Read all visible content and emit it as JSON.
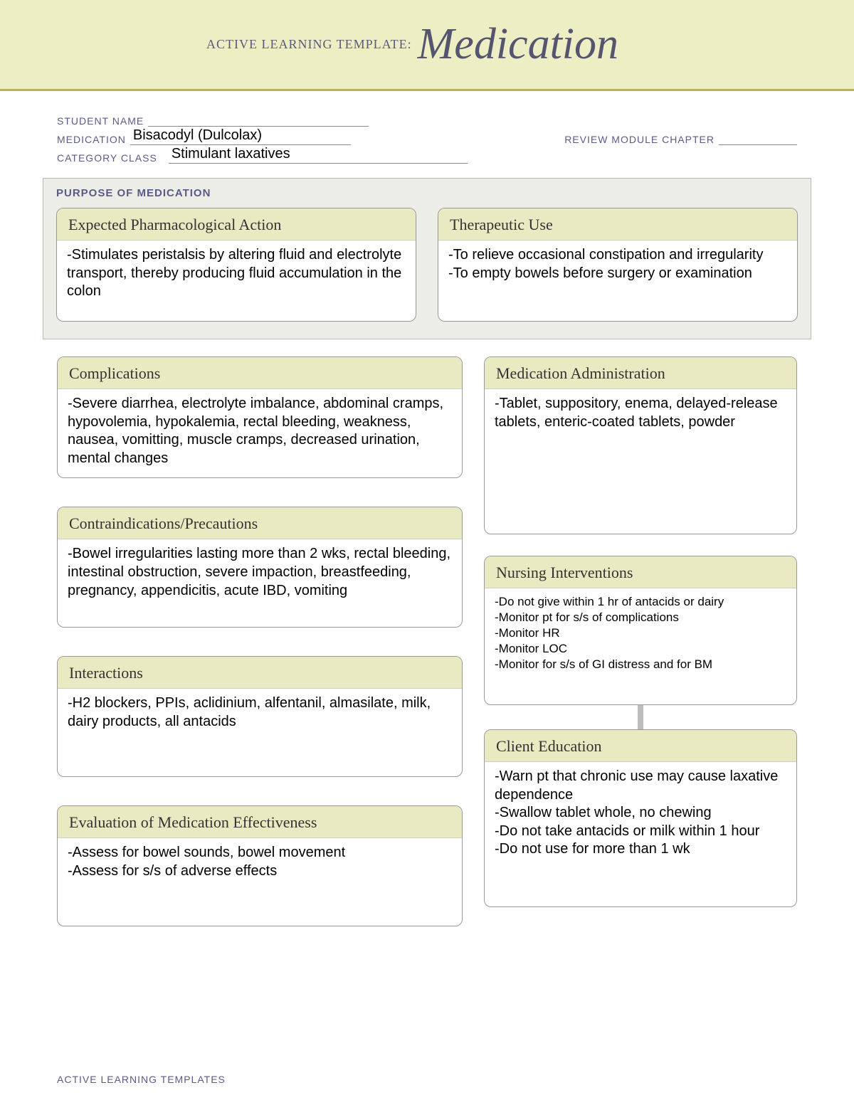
{
  "banner": {
    "prefix": "ACTIVE LEARNING TEMPLATE:",
    "title": "Medication",
    "background": "#eeeec5",
    "rule_color": "#b9b45a",
    "title_color": "#555570",
    "title_fontsize": 62
  },
  "fields": {
    "student_name_label": "STUDENT NAME",
    "student_name_value": "",
    "medication_label": "MEDICATION",
    "medication_value": "Bisacodyl (Dulcolax)",
    "review_label": "REVIEW MODULE CHAPTER",
    "review_value": "",
    "category_label": "CATEGORY CLASS",
    "category_value": "Stimulant laxatives",
    "label_color": "#5a5a8a"
  },
  "purpose": {
    "section_label": "PURPOSE OF MEDICATION",
    "background": "#edede8",
    "expected": {
      "title": "Expected Pharmacological Action",
      "body": "-Stimulates peristalsis by altering fluid and electrolyte transport, thereby producing fluid accumulation in the colon"
    },
    "therapeutic": {
      "title": "Therapeutic Use",
      "body": "-To relieve occasional constipation and irregularity\n-To empty bowels before surgery or examination"
    }
  },
  "card_header_bg": "#eaeac2",
  "complications": {
    "title": "Complications",
    "body": "-Severe diarrhea, electrolyte imbalance, abdominal cramps, hypovolemia, hypokalemia, rectal bleeding, weakness, nausea, vomitting, muscle cramps, decreased urination, mental changes"
  },
  "contra": {
    "title": "Contraindications/Precautions",
    "body": "-Bowel irregularities lasting more than 2 wks, rectal bleeding, intestinal obstruction, severe impaction, breastfeeding, pregnancy, appendicitis, acute IBD, vomiting"
  },
  "interactions": {
    "title": "Interactions",
    "body": "-H2 blockers, PPIs, aclidinium, alfentanil, almasilate, milk, dairy products, all antacids"
  },
  "evaluation": {
    "title": "Evaluation of Medication Effectiveness",
    "body": "-Assess for bowel sounds, bowel movement\n-Assess for s/s of adverse effects"
  },
  "med_admin": {
    "title": "Medication Administration",
    "body": "-Tablet, suppository, enema, delayed-release tablets, enteric-coated tablets, powder"
  },
  "nursing": {
    "title": "Nursing Interventions",
    "body": "-Do not give within 1 hr of antacids or dairy\n-Monitor pt for s/s of complications\n-Monitor HR\n-Monitor LOC\n-Monitor for s/s of GI distress and for BM"
  },
  "client_edu": {
    "title": "Client Education",
    "body": "-Warn pt that chronic use may cause laxative dependence\n-Swallow tablet whole, no chewing\n-Do not take antacids or milk within 1 hour\n-Do not use for more than 1 wk"
  },
  "footer": "ACTIVE LEARNING TEMPLATES",
  "connector_color": "#bdbdbd"
}
